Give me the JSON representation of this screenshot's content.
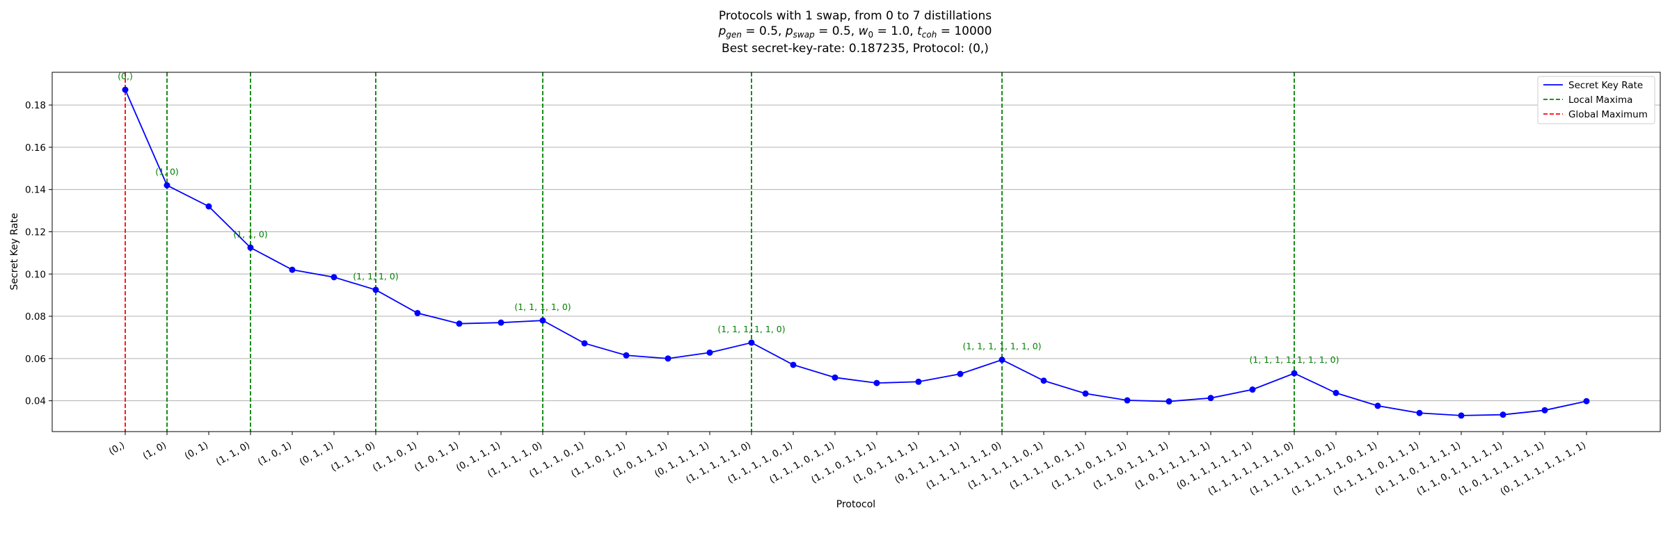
{
  "chart_data": {
    "type": "line",
    "title_line1": "Protocols with 1 swap, from 0 to 7 distillations",
    "title_line2": {
      "p": "p",
      "gen": "gen",
      "eq1": " = 0.5, ",
      "p2": "p",
      "swap": "swap",
      "eq2": " = 0.5, ",
      "w": "w",
      "zero": "0",
      "eq3": " = 1.0, ",
      "t": "t",
      "coh": "coh",
      "eq4": " = 10000"
    },
    "title_line3": "Best secret-key-rate: 0.187235, Protocol: (0,)",
    "xlabel": "Protocol",
    "ylabel": "Secret Key Rate",
    "ylim": [
      0.0254,
      0.1955
    ],
    "yticks": [
      0.04,
      0.06,
      0.08,
      0.1,
      0.12,
      0.14,
      0.16,
      0.18
    ],
    "ytick_labels": [
      "0.04",
      "0.06",
      "0.08",
      "0.10",
      "0.12",
      "0.14",
      "0.16",
      "0.18"
    ],
    "grid": "horizontal",
    "legend_position": "top-right",
    "legend": [
      {
        "label": "Secret Key Rate",
        "color": "#0000ff",
        "style": "solid"
      },
      {
        "label": "Local Maxima",
        "color": "#008000",
        "style": "dashed"
      },
      {
        "label": "Global Maximum",
        "color": "#ff0000",
        "style": "dashed"
      }
    ],
    "categories": [
      "(0,)",
      "(1, 0)",
      "(0, 1)",
      "(1, 1, 0)",
      "(1, 0, 1)",
      "(0, 1, 1)",
      "(1, 1, 1, 0)",
      "(1, 1, 0, 1)",
      "(1, 0, 1, 1)",
      "(0, 1, 1, 1)",
      "(1, 1, 1, 1, 0)",
      "(1, 1, 1, 0, 1)",
      "(1, 1, 0, 1, 1)",
      "(1, 0, 1, 1, 1)",
      "(0, 1, 1, 1, 1)",
      "(1, 1, 1, 1, 1, 0)",
      "(1, 1, 1, 1, 0, 1)",
      "(1, 1, 1, 0, 1, 1)",
      "(1, 1, 0, 1, 1, 1)",
      "(1, 0, 1, 1, 1, 1)",
      "(0, 1, 1, 1, 1, 1)",
      "(1, 1, 1, 1, 1, 1, 0)",
      "(1, 1, 1, 1, 1, 0, 1)",
      "(1, 1, 1, 1, 0, 1, 1)",
      "(1, 1, 1, 0, 1, 1, 1)",
      "(1, 1, 0, 1, 1, 1, 1)",
      "(1, 0, 1, 1, 1, 1, 1)",
      "(0, 1, 1, 1, 1, 1, 1)",
      "(1, 1, 1, 1, 1, 1, 1, 0)",
      "(1, 1, 1, 1, 1, 1, 0, 1)",
      "(1, 1, 1, 1, 1, 0, 1, 1)",
      "(1, 1, 1, 1, 0, 1, 1, 1)",
      "(1, 1, 1, 0, 1, 1, 1, 1)",
      "(1, 1, 0, 1, 1, 1, 1, 1)",
      "(1, 0, 1, 1, 1, 1, 1, 1)",
      "(0, 1, 1, 1, 1, 1, 1, 1)"
    ],
    "series": [
      {
        "name": "Secret Key Rate",
        "color": "#0000ff",
        "values": [
          0.187235,
          0.142,
          0.132,
          0.1125,
          0.102,
          0.0985,
          0.0925,
          0.0815,
          0.0765,
          0.077,
          0.078,
          0.0672,
          0.0615,
          0.06,
          0.0628,
          0.0675,
          0.057,
          0.051,
          0.0484,
          0.049,
          0.0527,
          0.0594,
          0.0495,
          0.0434,
          0.0402,
          0.0397,
          0.0413,
          0.0453,
          0.053,
          0.0437,
          0.0376,
          0.0342,
          0.033,
          0.0334,
          0.0355,
          0.0398
        ]
      }
    ],
    "local_maxima_indices": [
      1,
      3,
      6,
      10,
      15,
      21,
      28
    ],
    "global_maximum_index": 0,
    "annotations": [
      {
        "index": 0,
        "text": "(0,)"
      },
      {
        "index": 1,
        "text": "(1, 0)"
      },
      {
        "index": 3,
        "text": "(1, 1, 0)"
      },
      {
        "index": 6,
        "text": "(1, 1, 1, 0)"
      },
      {
        "index": 10,
        "text": "(1, 1, 1, 1, 0)"
      },
      {
        "index": 15,
        "text": "(1, 1, 1, 1, 1, 0)"
      },
      {
        "index": 21,
        "text": "(1, 1, 1, 1, 1, 1, 0)"
      },
      {
        "index": 28,
        "text": "(1, 1, 1, 1, 1, 1, 1, 0)"
      }
    ]
  }
}
